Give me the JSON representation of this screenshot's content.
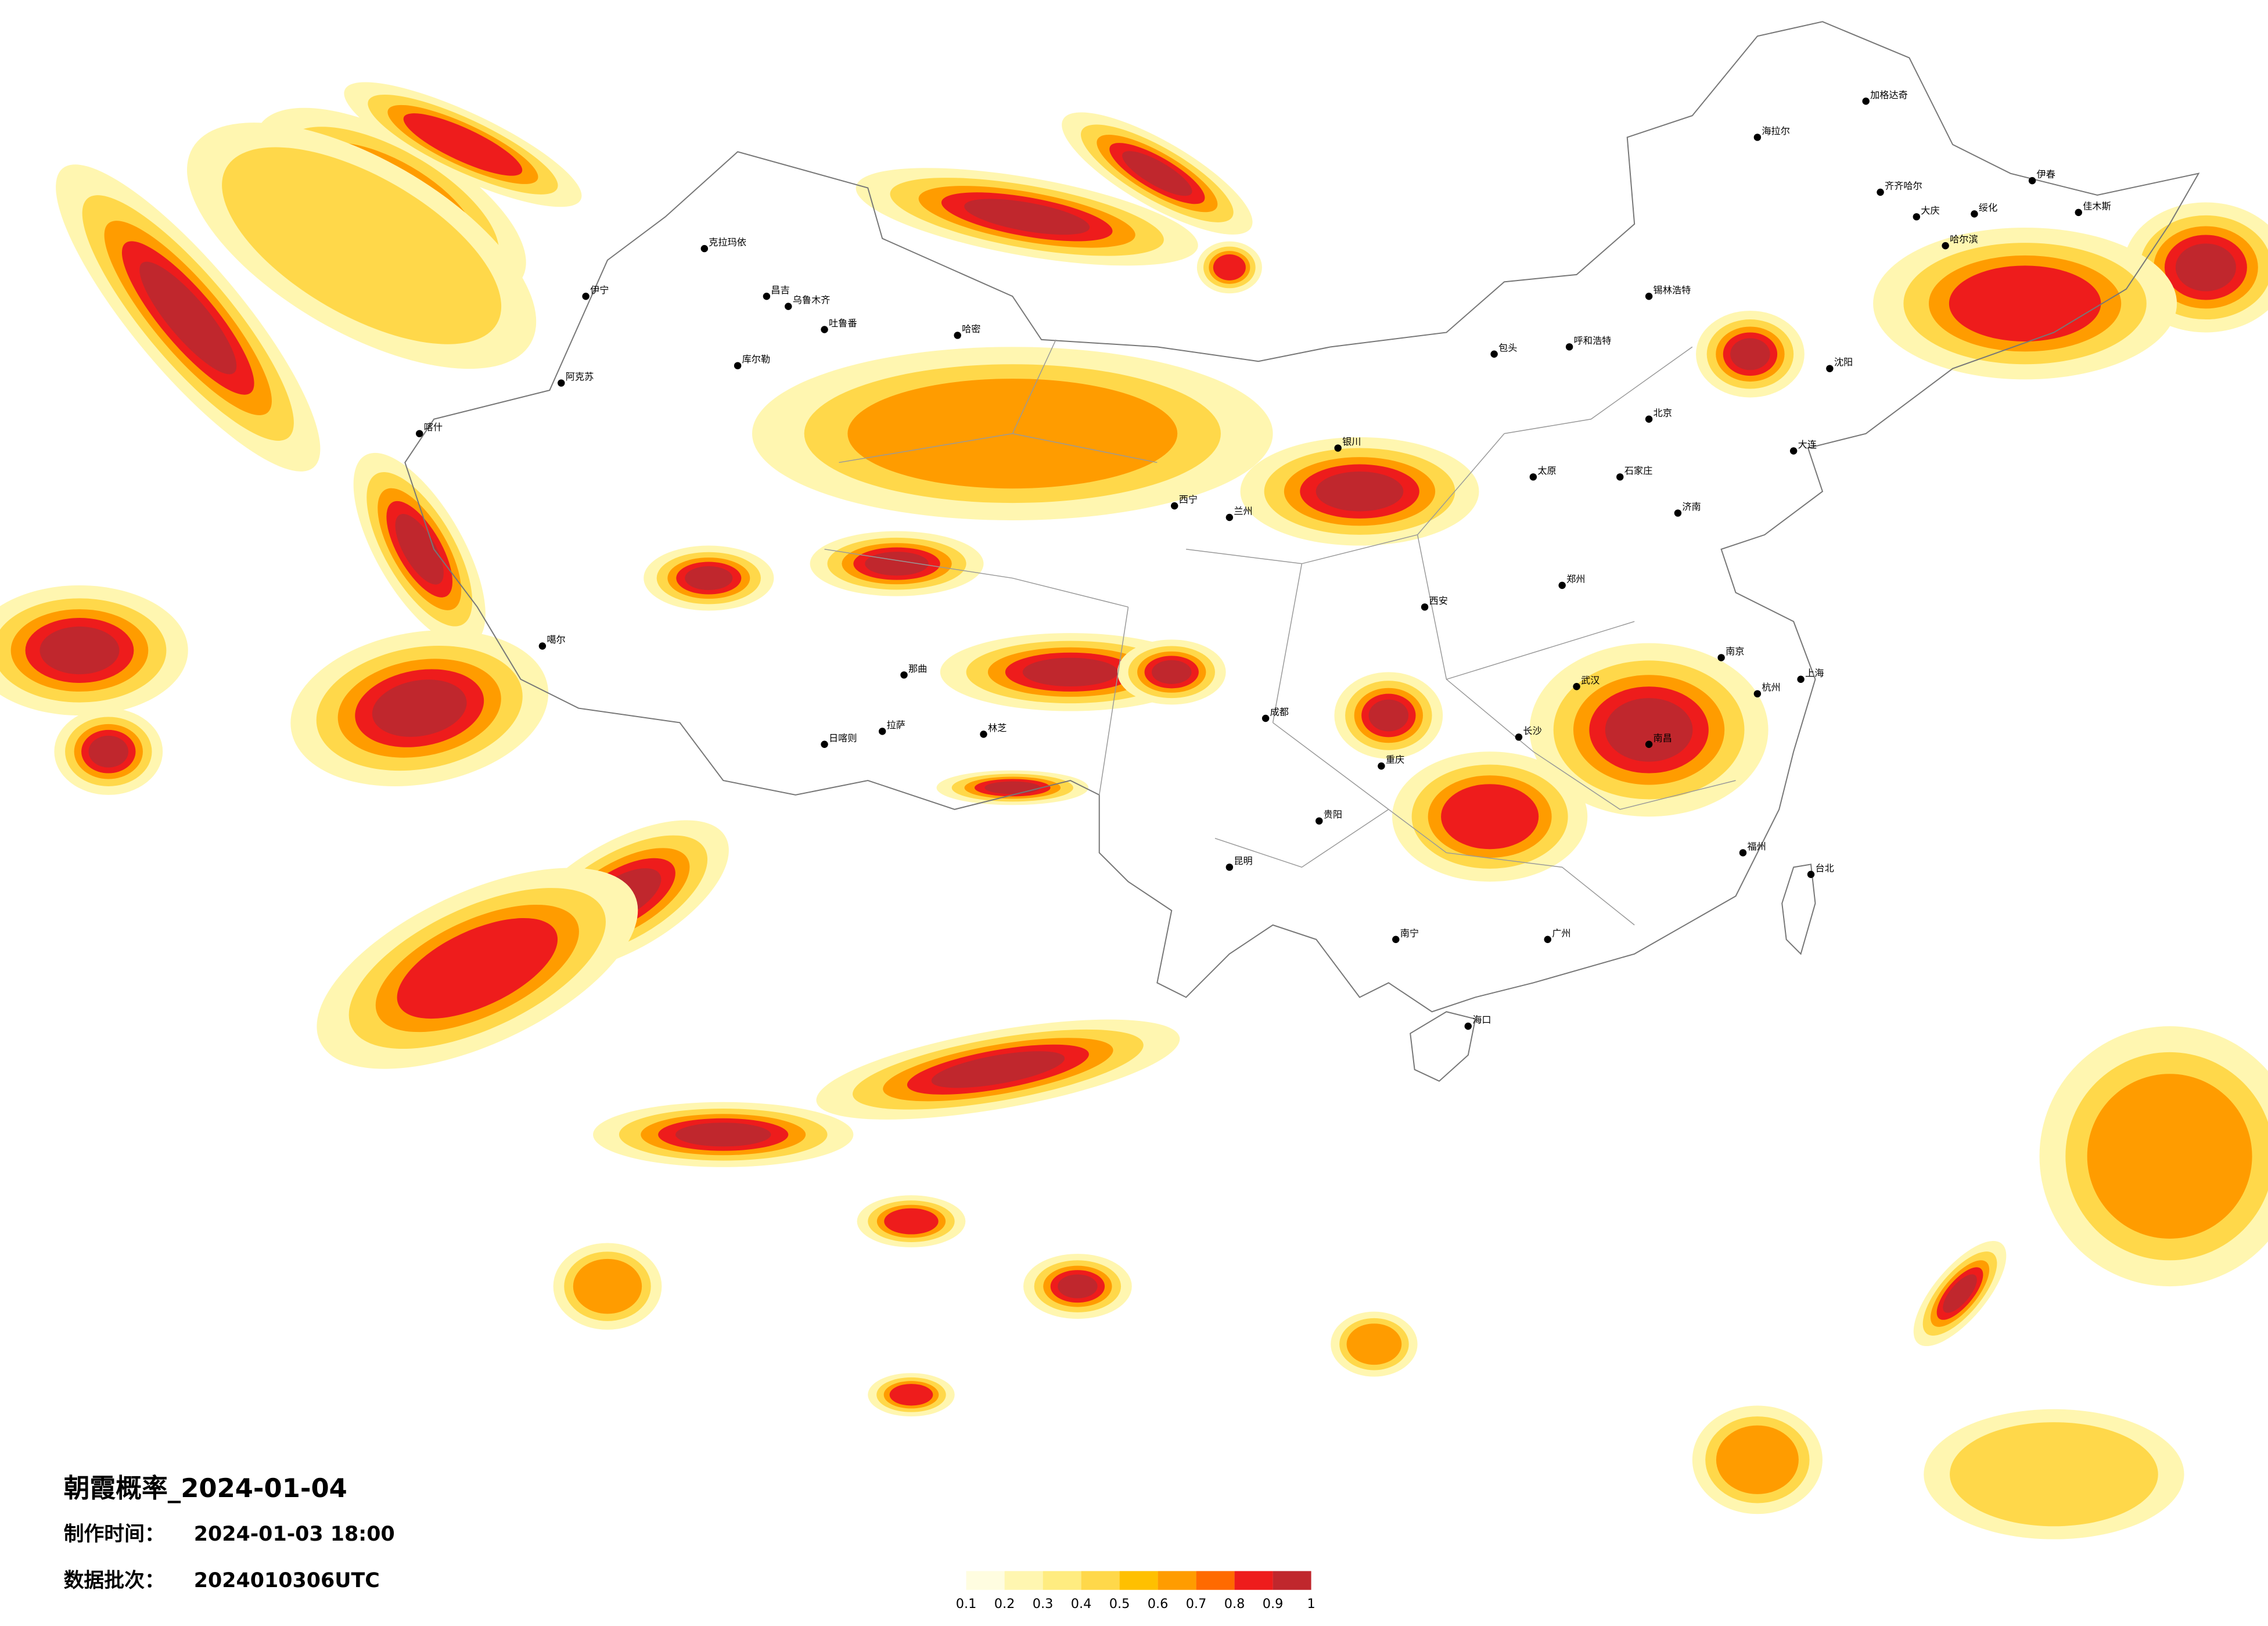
{
  "map": {
    "title": "朝霞概率_2024-01-04",
    "made_label": "制作时间：",
    "made_time": "2024-01-03 18:00",
    "batch_label": "数据批次：",
    "batch": "2024010306UTC",
    "cities": [
      "克拉玛依",
      "伊宁",
      "昌吉",
      "乌鲁木齐",
      "吐鲁番",
      "哈密",
      "库尔勒",
      "阿克苏",
      "喀什",
      "噶尔",
      "日喀则",
      "拉萨",
      "林芝",
      "那曲",
      "西宁",
      "兰州",
      "银川",
      "呼和浩特",
      "包头",
      "锡林浩特",
      "海拉尔",
      "加格达奇",
      "齐齐哈尔",
      "大庆",
      "绥化",
      "伊春",
      "佳木斯",
      "哈尔滨",
      "沈阳",
      "大连",
      "北京",
      "石家庄",
      "太原",
      "济南",
      "郑州",
      "西安",
      "成都",
      "重庆",
      "贵阳",
      "昆明",
      "南宁",
      "广州",
      "长沙",
      "武汉",
      "南昌",
      "南京",
      "上海",
      "杭州",
      "福州",
      "台北",
      "海口"
    ]
  },
  "legend": {
    "colors": [
      "#fffde0",
      "#fff6b0",
      "#ffec80",
      "#ffd84a",
      "#ffc000",
      "#ff9c00",
      "#ff6a00",
      "#ee1c1c",
      "#c0272d"
    ],
    "ticks": [
      0.1,
      0.2,
      0.3,
      0.4,
      0.5,
      0.6,
      0.7,
      0.8,
      0.9,
      1
    ]
  }
}
